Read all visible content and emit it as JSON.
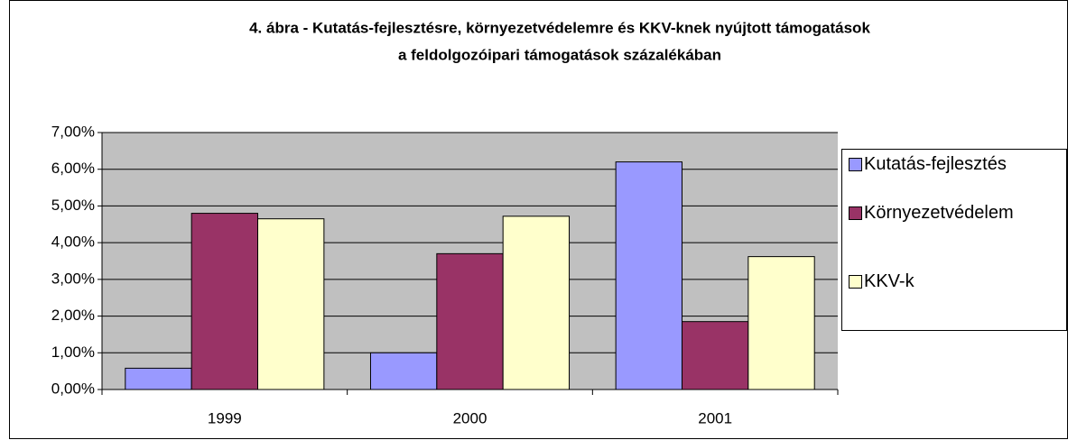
{
  "chart_data": {
    "type": "bar",
    "title": [
      "4. ábra - Kutatás-fejlesztésre, környezetvédelemre és KKV-knek nyújtott támogatások",
      "a feldolgozóipari támogatások százalékában"
    ],
    "categories": [
      "1999",
      "2000",
      "2001"
    ],
    "series": [
      {
        "name": "Kutatás-fejlesztés",
        "color": "#9999ff",
        "values": [
          0.58,
          1.0,
          6.2
        ]
      },
      {
        "name": "Környezetvédelem",
        "color": "#993366",
        "values": [
          4.8,
          3.7,
          1.85
        ]
      },
      {
        "name": "KKV-k",
        "color": "#ffffcc",
        "values": [
          4.65,
          4.72,
          3.62
        ]
      }
    ],
    "ylim": [
      0,
      7
    ],
    "yticks": [
      {
        "value": 0,
        "label": "0,00%"
      },
      {
        "value": 1,
        "label": "1,00%"
      },
      {
        "value": 2,
        "label": "2,00%"
      },
      {
        "value": 3,
        "label": "3,00%"
      },
      {
        "value": 4,
        "label": "4,00%"
      },
      {
        "value": 5,
        "label": "5,00%"
      },
      {
        "value": 6,
        "label": "6,00%"
      },
      {
        "value": 7,
        "label": "7,00%"
      }
    ],
    "grid": true,
    "legend": "right"
  }
}
